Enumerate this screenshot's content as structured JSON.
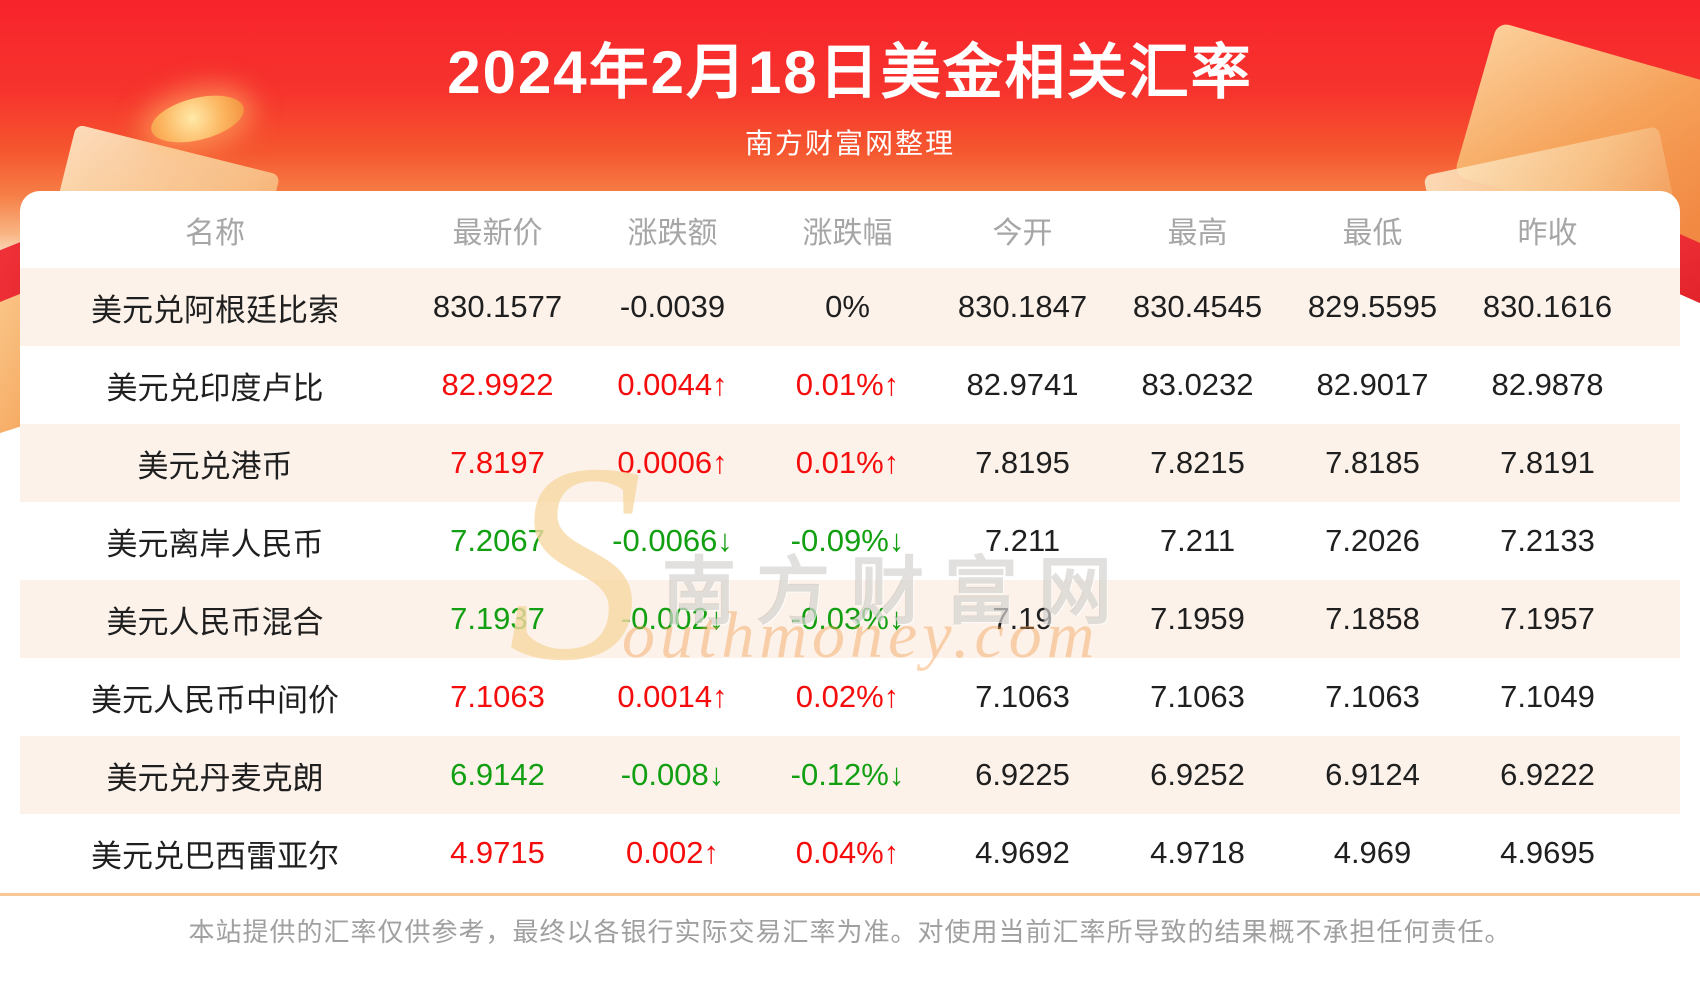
{
  "header": {
    "title": "2024年2月18日美金相关汇率",
    "subtitle": "南方财富网整理"
  },
  "table": {
    "columns": [
      "名称",
      "最新价",
      "涨跌额",
      "涨跌幅",
      "今开",
      "最高",
      "最低",
      "昨收"
    ],
    "rows": [
      {
        "name": "美元兑阿根廷比索",
        "latest": "830.1577",
        "change": "-0.0039",
        "change_pct": "0%",
        "open": "830.1847",
        "high": "830.4545",
        "low": "829.5595",
        "prev_close": "830.1616",
        "trend": "flat"
      },
      {
        "name": "美元兑印度卢比",
        "latest": "82.9922",
        "change": "0.0044↑",
        "change_pct": "0.01%↑",
        "open": "82.9741",
        "high": "83.0232",
        "low": "82.9017",
        "prev_close": "82.9878",
        "trend": "up"
      },
      {
        "name": "美元兑港币",
        "latest": "7.8197",
        "change": "0.0006↑",
        "change_pct": "0.01%↑",
        "open": "7.8195",
        "high": "7.8215",
        "low": "7.8185",
        "prev_close": "7.8191",
        "trend": "up"
      },
      {
        "name": "美元离岸人民币",
        "latest": "7.2067",
        "change": "-0.0066↓",
        "change_pct": "-0.09%↓",
        "open": "7.211",
        "high": "7.211",
        "low": "7.2026",
        "prev_close": "7.2133",
        "trend": "down"
      },
      {
        "name": "美元人民币混合",
        "latest": "7.1937",
        "change": "-0.002↓",
        "change_pct": "-0.03%↓",
        "open": "7.19",
        "high": "7.1959",
        "low": "7.1858",
        "prev_close": "7.1957",
        "trend": "down"
      },
      {
        "name": "美元人民币中间价",
        "latest": "7.1063",
        "change": "0.0014↑",
        "change_pct": "0.02%↑",
        "open": "7.1063",
        "high": "7.1063",
        "low": "7.1063",
        "prev_close": "7.1049",
        "trend": "up"
      },
      {
        "name": "美元兑丹麦克朗",
        "latest": "6.9142",
        "change": "-0.008↓",
        "change_pct": "-0.12%↓",
        "open": "6.9225",
        "high": "6.9252",
        "low": "6.9124",
        "prev_close": "6.9222",
        "trend": "down"
      },
      {
        "name": "美元兑巴西雷亚尔",
        "latest": "4.9715",
        "change": "0.002↑",
        "change_pct": "0.04%↑",
        "open": "4.9692",
        "high": "4.9718",
        "low": "4.969",
        "prev_close": "4.9695",
        "trend": "up"
      }
    ]
  },
  "watermark": {
    "swoosh": "S",
    "cn": "南方财富网",
    "en": "outhmoney.com"
  },
  "footer": {
    "disclaimer": "本站提供的汇率仅供参考，最终以各银行实际交易汇率为准。对使用当前汇率所导致的结果概不承担任何责任。"
  },
  "colors": {
    "up": "#f50d0d",
    "down": "#12a012",
    "banner_red": "#f8232c",
    "row_alt": "#fcf2ea",
    "divider": "#f7c795"
  }
}
